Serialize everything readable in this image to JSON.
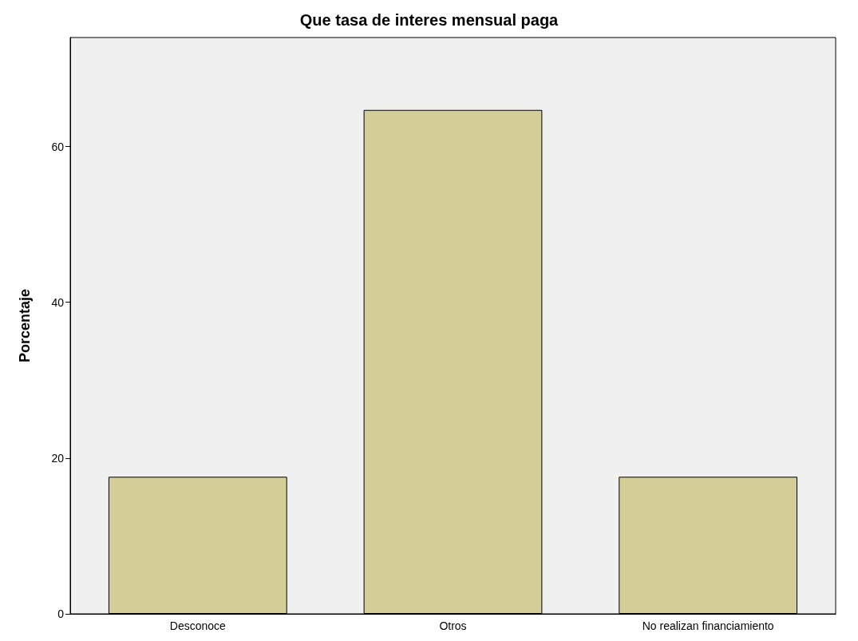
{
  "chart_data": {
    "type": "bar",
    "title": "Que tasa de interes mensual paga",
    "ylabel": "Porcentaje",
    "categories": [
      "Desconoce",
      "Otros",
      "No realizan financiamiento"
    ],
    "values": [
      17.6,
      64.7,
      17.6
    ],
    "color": "#d3ce97",
    "ylim": [
      0,
      74
    ],
    "yticks": [
      0,
      20,
      40,
      60
    ],
    "grid": false
  }
}
